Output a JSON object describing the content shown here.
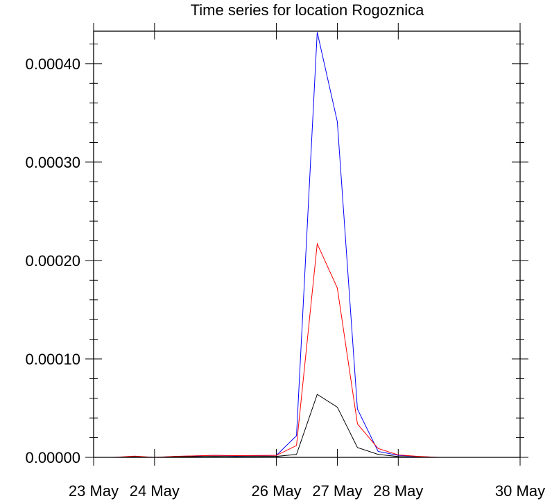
{
  "chart_data": {
    "type": "line",
    "title": "Time series for location Rogoznica",
    "xlabel": "",
    "ylabel": "",
    "x_tick_labels": [
      {
        "day": 23,
        "label": "23 May"
      },
      {
        "day": 24,
        "label": "24 May"
      },
      {
        "day": 26,
        "label": "26 May"
      },
      {
        "day": 27,
        "label": "27 May"
      },
      {
        "day": 28,
        "label": "28 May"
      },
      {
        "day": 30,
        "label": "30 May"
      }
    ],
    "y_tick_labels": [
      "0.00000",
      "0.00010",
      "0.00020",
      "0.00030",
      "0.00040"
    ],
    "ylim": [
      0,
      0.000433
    ],
    "grid": false,
    "legend": "none",
    "x": [
      "23 May",
      "23.33 May",
      "23.67 May",
      "24 May",
      "24.33 May",
      "24.67 May",
      "25 May",
      "25.33 May",
      "26 May",
      "26.33 May",
      "26.67 May",
      "27 May",
      "27.33 May",
      "27.67 May",
      "28 May",
      "28.33 May",
      "28.67 May",
      "29 May",
      "29.33 May",
      "30 May"
    ],
    "series": [
      {
        "color": "#0000ff",
        "values": [
          0,
          0,
          8e-07,
          0,
          8e-07,
          1.5e-06,
          2e-06,
          1.5e-06,
          2e-06,
          2.2e-05,
          0.000432,
          0.000341,
          4.9e-05,
          6e-06,
          2e-06,
          8e-07,
          0,
          0,
          0,
          0
        ]
      },
      {
        "color": "#ff0000",
        "values": [
          0,
          0,
          1.2e-06,
          0,
          1e-06,
          1.5e-06,
          2e-06,
          1.8e-06,
          2e-06,
          1.2e-05,
          0.000217,
          0.000172,
          3.4e-05,
          9e-06,
          2.5e-06,
          1e-06,
          0,
          0,
          0,
          0
        ]
      },
      {
        "color": "#000000",
        "values": [
          0,
          0,
          5e-07,
          0,
          5e-07,
          8e-07,
          1e-06,
          8e-07,
          1e-06,
          3e-06,
          6.4e-05,
          5.1e-05,
          1e-05,
          3e-06,
          8e-07,
          3e-07,
          0,
          0,
          0,
          0
        ]
      }
    ]
  }
}
